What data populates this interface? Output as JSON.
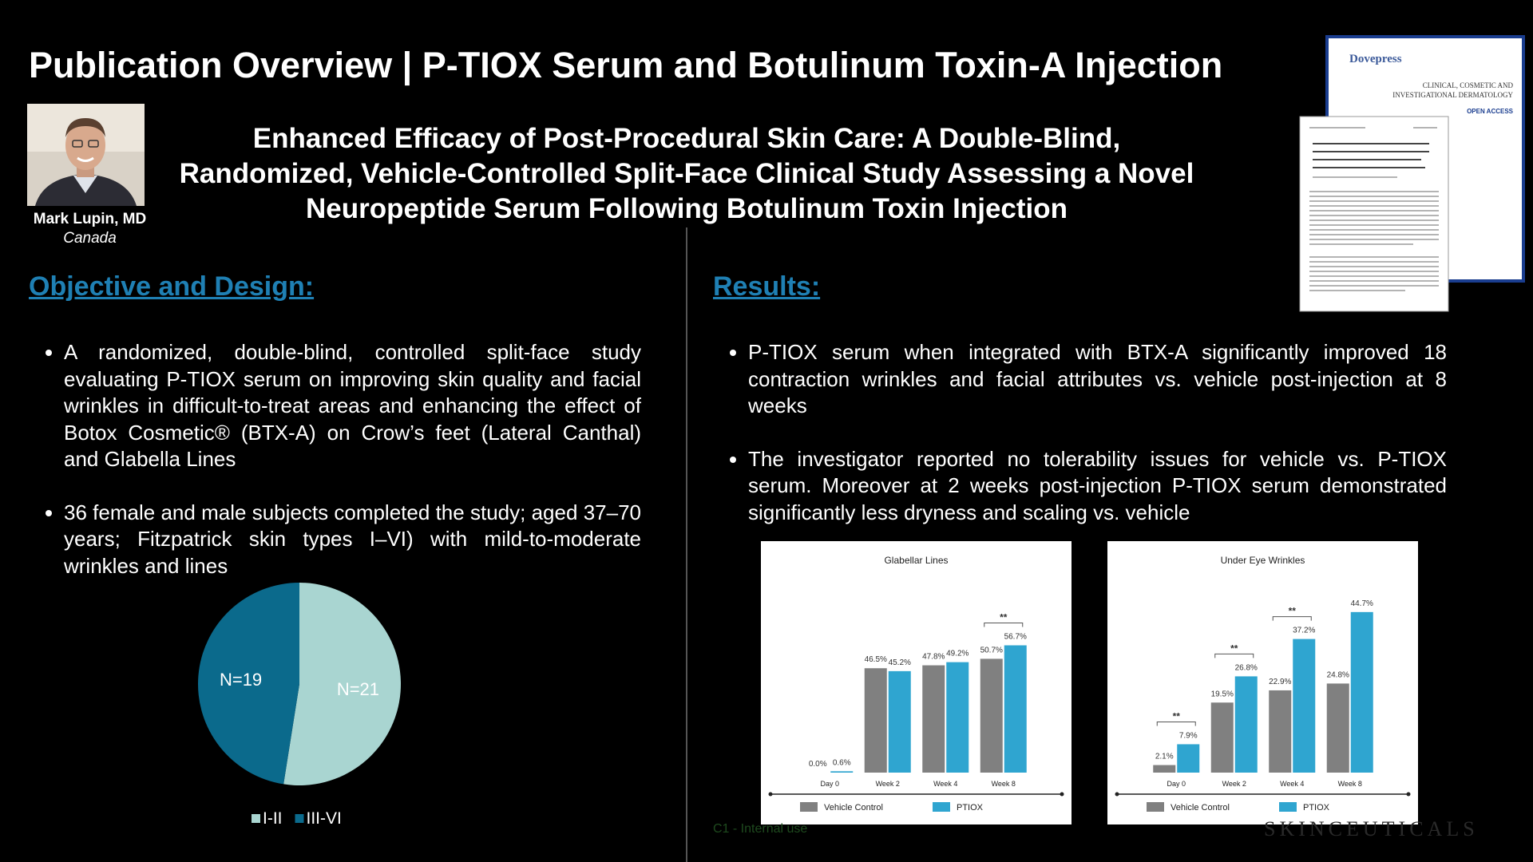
{
  "header": {
    "title": "Publication Overview | P-TIOX Serum and Botulinum Toxin-A Injection",
    "presenter_name": "Mark Lupin, MD",
    "presenter_location": "Canada"
  },
  "publication": {
    "title_lines": [
      "Enhanced Efficacy of Post-Procedural Skin Care: A Double-Blind,",
      "Randomized, Vehicle-Controlled Split-Face Clinical Study Assessing a Novel",
      "Neuropeptide Serum Following Botulinum Toxin Injection"
    ],
    "journal": {
      "publisher": "Dovepress",
      "name_lines": [
        "CLINICAL, COSMETIC AND",
        "INVESTIGATIONAL DERMATOLOGY"
      ],
      "access": "OPEN ACCESS"
    }
  },
  "objective": {
    "heading": "Objective and Design:",
    "bullets": [
      "A randomized, double-blind, controlled split-face study evaluating P-TIOX serum on improving skin quality and facial wrinkles in difficult-to-treat areas and enhancing the effect of Botox Cosmetic® (BTX-A) on Crow’s feet (Lateral Canthal) and Glabella Lines",
      "36 female and male subjects completed the study;  aged 37–70 years; Fitzpatrick skin types I–VI) with mild-to-moderate wrinkles and lines"
    ]
  },
  "results": {
    "heading": "Results:",
    "bullets": [
      "P-TIOX serum when integrated with BTX-A significantly improved 18 contraction wrinkles and facial attributes vs. vehicle post-injection at 8 weeks",
      "The investigator reported no tolerability issues for vehicle vs. P-TIOX serum. Moreover at 2 weeks post-injection P-TIOX serum demonstrated significantly less dryness and scaling vs. vehicle"
    ]
  },
  "chart_data": [
    {
      "type": "pie",
      "categories": [
        "I-II",
        "III-VI"
      ],
      "values": [
        21,
        19
      ],
      "value_labels": [
        "N=21",
        "N=19"
      ],
      "colors": [
        "#a9d5d1",
        "#0b6a8c"
      ],
      "legend": "bottom"
    },
    {
      "type": "bar",
      "title": "Glabellar Lines",
      "categories": [
        "Day 0",
        "Week 2",
        "Week 4",
        "Week 8"
      ],
      "series": [
        {
          "name": "Vehicle Control",
          "color": "#808080",
          "values": [
            0.0,
            46.5,
            47.8,
            50.7
          ],
          "value_labels": [
            "0.0%",
            "46.5%",
            "47.8%",
            "50.7%"
          ]
        },
        {
          "name": "PTIOX",
          "color": "#2fa5d0",
          "values": [
            0.6,
            45.2,
            49.2,
            56.7
          ],
          "value_labels": [
            "0.6%",
            "45.2%",
            "49.2%",
            "56.7%"
          ]
        }
      ],
      "significance": [
        null,
        null,
        null,
        "**"
      ],
      "ylim": [
        0,
        80
      ]
    },
    {
      "type": "bar",
      "title": "Under Eye Wrinkles",
      "categories": [
        "Day 0",
        "Week 2",
        "Week 4",
        "Week 8"
      ],
      "series": [
        {
          "name": "Vehicle Control",
          "color": "#808080",
          "values": [
            2.1,
            19.5,
            22.9,
            24.8
          ],
          "value_labels": [
            "2.1%",
            "19.5%",
            "22.9%",
            "24.8%"
          ]
        },
        {
          "name": "PTIOX",
          "color": "#2fa5d0",
          "values": [
            7.9,
            26.8,
            37.2,
            44.7
          ],
          "value_labels": [
            "7.9%",
            "26.8%",
            "37.2%",
            "44.7%"
          ]
        }
      ],
      "significance": [
        "**",
        "**",
        "**",
        null
      ],
      "ylim": [
        0,
        50
      ]
    }
  ],
  "footer": {
    "classification": "C1 - Internal use",
    "brand": "SKINCEUTICALS"
  }
}
